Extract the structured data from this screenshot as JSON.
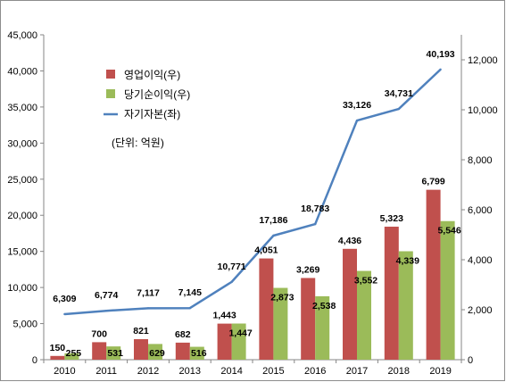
{
  "chart_data": {
    "type": "bar",
    "categories": [
      "2010",
      "2011",
      "2012",
      "2013",
      "2014",
      "2015",
      "2016",
      "2017",
      "2018",
      "2019"
    ],
    "series": [
      {
        "name": "영업이익(우)",
        "type": "bar",
        "axis": "right",
        "color": "#c0504d",
        "values": [
          150,
          700,
          821,
          682,
          1443,
          4051,
          3269,
          4436,
          5323,
          6799
        ]
      },
      {
        "name": "당기순이익(우)",
        "type": "bar",
        "axis": "right",
        "color": "#9bbb59",
        "values": [
          255,
          531,
          629,
          516,
          1447,
          2873,
          2538,
          3552,
          4339,
          5546
        ]
      },
      {
        "name": "자기자본(좌)",
        "type": "line",
        "axis": "left",
        "color": "#4f81bd",
        "values": [
          6309,
          6774,
          7117,
          7145,
          10771,
          17186,
          18783,
          33126,
          34731,
          40193
        ]
      }
    ],
    "bar_labels": {
      "series_0": [
        "150",
        "700",
        "821",
        "682",
        "1,443",
        "4,051",
        "3,269",
        "4,436",
        "5,323",
        "6,799"
      ],
      "series_1": [
        "255",
        "531",
        "629",
        "516",
        "1,447",
        "2,873",
        "2,538",
        "3,552",
        "4,339",
        "5,546"
      ],
      "series_2": [
        "6,309",
        "6,774",
        "7,117",
        "7,145",
        "10,771",
        "17,186",
        "18,783",
        "33,126",
        "34,731",
        "40,193"
      ]
    },
    "left_axis": {
      "ylim": [
        0,
        45000
      ],
      "ticks": [
        "0",
        "5,000",
        "10,000",
        "15,000",
        "20,000",
        "25,000",
        "30,000",
        "35,000",
        "40,000",
        "45,000"
      ]
    },
    "right_axis": {
      "ylim": [
        0,
        13000
      ],
      "ticks": [
        "0",
        "2,000",
        "4,000",
        "6,000",
        "8,000",
        "10,000",
        "12,000"
      ]
    },
    "legend_position": "top-left",
    "unit_note": "(단위: 억원)",
    "grid": false
  }
}
